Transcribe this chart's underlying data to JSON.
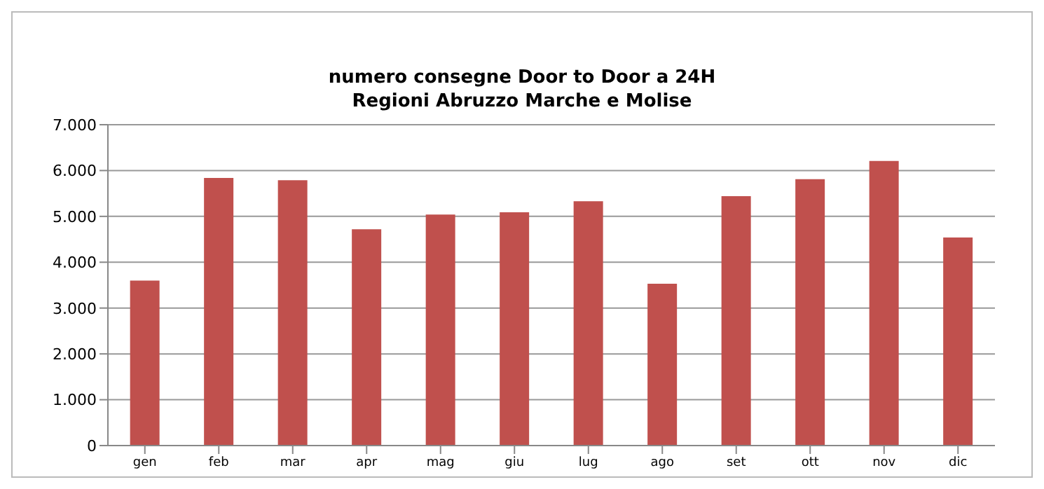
{
  "chart_data": {
    "type": "bar",
    "title": "numero consegne Door  to Door a 24H\nRegioni  Abruzzo Marche e Molise",
    "categories": [
      "gen",
      "feb",
      "mar",
      "apr",
      "mag",
      "giu",
      "lug",
      "ago",
      "set",
      "ott",
      "nov",
      "dic"
    ],
    "values": [
      3600,
      5840,
      5790,
      4720,
      5040,
      5090,
      5330,
      3530,
      5440,
      5810,
      6210,
      4540
    ],
    "color": "#c0504d",
    "ylim": [
      0,
      7000
    ],
    "yticks": [
      0,
      {
        "value": 1000,
        "label": "1.000"
      },
      {
        "value": 2000,
        "label": "2.000"
      },
      {
        "value": 3000,
        "label": "3.000"
      },
      {
        "value": 4000,
        "label": "4.000"
      },
      {
        "value": 5000,
        "label": "5.000"
      },
      {
        "value": 6000,
        "label": "6.000"
      },
      {
        "value": 7000,
        "label": "7.000"
      }
    ],
    "grid": "y",
    "legend": false
  }
}
